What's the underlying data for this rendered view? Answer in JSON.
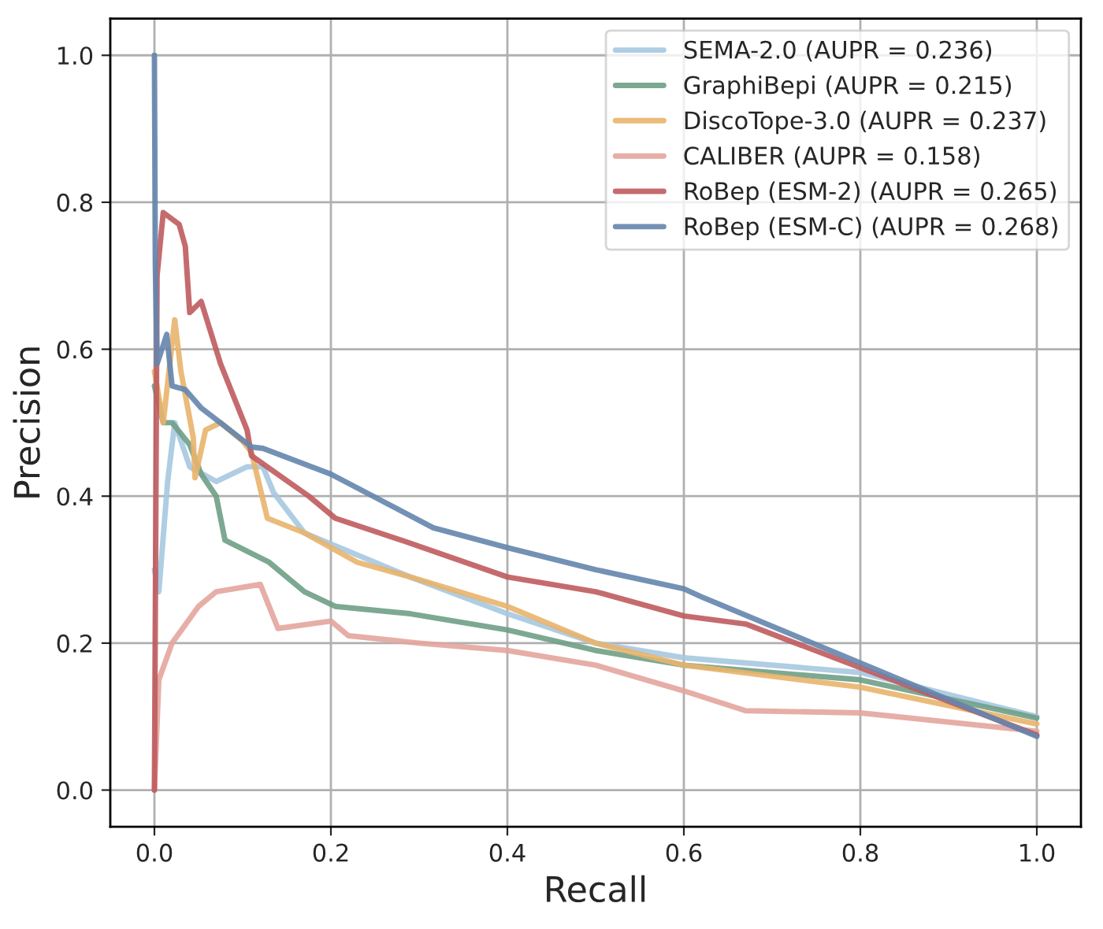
{
  "chart_data": {
    "type": "line",
    "xlabel": "Recall",
    "ylabel": "Precision",
    "xlim": [
      -0.05,
      1.05
    ],
    "ylim": [
      -0.05,
      1.05
    ],
    "xticks": [
      {
        "value": 0,
        "label": "0.0"
      },
      0.2,
      0.4,
      0.6,
      0.8,
      {
        "value": 1,
        "label": "1.0"
      }
    ],
    "yticks": [
      {
        "value": 0,
        "label": "0.0"
      },
      0.2,
      0.4,
      0.6,
      0.8,
      {
        "value": 1,
        "label": "1.0"
      }
    ],
    "grid": true,
    "legend": "top right",
    "marker": "none",
    "line_style": "solid",
    "series": [
      {
        "name": "SEMA-2.0 (AUPR = 0.236)",
        "color": "#a6c8e0",
        "x": [
          0.0,
          0.005,
          0.015,
          0.023,
          0.04,
          0.07,
          0.105,
          0.123,
          0.135,
          0.17,
          0.29,
          0.4,
          0.5,
          0.6,
          0.8,
          1.0
        ],
        "values": [
          0.3,
          0.27,
          0.42,
          0.5,
          0.44,
          0.42,
          0.44,
          0.44,
          0.405,
          0.35,
          0.29,
          0.24,
          0.2,
          0.18,
          0.16,
          0.1
        ]
      },
      {
        "name": "GraphiBepi (AUPR = 0.215)",
        "color": "#6f9e86",
        "x": [
          0.0,
          0.01,
          0.02,
          0.04,
          0.053,
          0.07,
          0.08,
          0.13,
          0.17,
          0.205,
          0.29,
          0.4,
          0.5,
          0.6,
          0.8,
          1.0
        ],
        "values": [
          0.55,
          0.5,
          0.5,
          0.47,
          0.43,
          0.4,
          0.34,
          0.31,
          0.27,
          0.25,
          0.24,
          0.218,
          0.19,
          0.17,
          0.15,
          0.098
        ]
      },
      {
        "name": "DiscoTope-3.0 (AUPR = 0.237)",
        "color": "#e8b46c",
        "x": [
          0.0,
          0.01,
          0.023,
          0.03,
          0.044,
          0.046,
          0.058,
          0.075,
          0.1,
          0.11,
          0.128,
          0.17,
          0.23,
          0.29,
          0.4,
          0.5,
          0.6,
          0.8,
          1.0
        ],
        "values": [
          0.57,
          0.5,
          0.64,
          0.57,
          0.48,
          0.425,
          0.49,
          0.5,
          0.475,
          0.46,
          0.37,
          0.35,
          0.31,
          0.29,
          0.25,
          0.2,
          0.17,
          0.14,
          0.09
        ]
      },
      {
        "name": "CALIBER (AUPR = 0.158)",
        "color": "#e3a59d",
        "x": [
          0.0,
          0.005,
          0.02,
          0.05,
          0.07,
          0.12,
          0.14,
          0.2,
          0.22,
          0.3,
          0.4,
          0.5,
          0.6,
          0.67,
          0.8,
          1.0
        ],
        "values": [
          0.0,
          0.15,
          0.2,
          0.25,
          0.27,
          0.28,
          0.22,
          0.23,
          0.21,
          0.2,
          0.19,
          0.17,
          0.135,
          0.108,
          0.105,
          0.08
        ]
      },
      {
        "name": "RoBep (ESM-2) (AUPR = 0.265)",
        "color": "#bf5b5e",
        "x": [
          0.0,
          0.003,
          0.01,
          0.028,
          0.035,
          0.04,
          0.053,
          0.075,
          0.105,
          0.11,
          0.175,
          0.205,
          0.29,
          0.4,
          0.5,
          0.6,
          0.67,
          1.0
        ],
        "values": [
          0.0,
          0.7,
          0.786,
          0.77,
          0.74,
          0.65,
          0.665,
          0.58,
          0.49,
          0.455,
          0.4,
          0.37,
          0.336,
          0.29,
          0.27,
          0.237,
          0.226,
          0.075
        ]
      },
      {
        "name": "RoBep (ESM-C) (AUPR = 0.268)",
        "color": "#6485ad",
        "x": [
          0.0,
          0.001,
          0.003,
          0.014,
          0.02,
          0.035,
          0.053,
          0.08,
          0.11,
          0.123,
          0.2,
          0.316,
          0.4,
          0.5,
          0.6,
          0.62,
          1.0
        ],
        "values": [
          1.0,
          0.715,
          0.58,
          0.62,
          0.55,
          0.545,
          0.52,
          0.495,
          0.467,
          0.465,
          0.43,
          0.357,
          0.33,
          0.3,
          0.274,
          0.263,
          0.073
        ]
      }
    ]
  }
}
